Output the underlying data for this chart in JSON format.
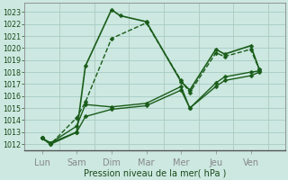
{
  "background_color": "#cce8e0",
  "grid_color": "#a8ccc4",
  "line_color": "#1a5c1a",
  "xlabel": "Pression niveau de la mer( hPa )",
  "x_labels": [
    "Lun",
    "Sam",
    "Dim",
    "Mar",
    "Mer",
    "Jeu",
    "Ven"
  ],
  "ylim": [
    1011.5,
    1023.8
  ],
  "yticks": [
    1012,
    1013,
    1014,
    1015,
    1016,
    1017,
    1018,
    1019,
    1020,
    1021,
    1022,
    1023
  ],
  "series": [
    {
      "x": [
        0.5,
        0.75,
        1.5,
        1.75,
        2.5,
        2.75,
        3.5,
        4.5,
        4.75,
        5.5,
        5.75,
        6.5,
        6.75
      ],
      "y": [
        1012.5,
        1012.0,
        1013.0,
        1018.5,
        1023.2,
        1022.7,
        1022.2,
        1017.2,
        1016.5,
        1019.9,
        1019.5,
        1020.2,
        1018.2
      ],
      "style": "-",
      "marker": "D",
      "ms": 2.5,
      "lw": 1.2
    },
    {
      "x": [
        0.5,
        0.75,
        1.5,
        1.75,
        2.5,
        3.5,
        4.5,
        4.75,
        5.5,
        5.75,
        6.5,
        6.75
      ],
      "y": [
        1012.5,
        1012.0,
        1014.2,
        1015.5,
        1020.8,
        1022.1,
        1017.3,
        1016.3,
        1019.6,
        1019.3,
        1019.9,
        1018.2
      ],
      "style": "--",
      "marker": "D",
      "ms": 2.5,
      "lw": 1.0
    },
    {
      "x": [
        0.5,
        0.75,
        1.5,
        1.75,
        2.5,
        3.5,
        4.5,
        4.75,
        5.5,
        5.75,
        6.5,
        6.75
      ],
      "y": [
        1012.5,
        1012.1,
        1013.5,
        1015.3,
        1015.1,
        1015.4,
        1016.8,
        1015.0,
        1017.1,
        1017.6,
        1018.0,
        1018.1
      ],
      "style": "-",
      "marker": "D",
      "ms": 2.5,
      "lw": 1.0
    },
    {
      "x": [
        0.5,
        0.75,
        1.5,
        1.75,
        2.5,
        3.5,
        4.5,
        4.75,
        5.5,
        5.75,
        6.5,
        6.75
      ],
      "y": [
        1012.5,
        1012.1,
        1013.0,
        1014.3,
        1014.9,
        1015.2,
        1016.5,
        1015.0,
        1016.8,
        1017.3,
        1017.7,
        1018.0
      ],
      "style": "-",
      "marker": "D",
      "ms": 2.5,
      "lw": 1.0
    }
  ],
  "vline_x": [
    1.0,
    2.0,
    3.0,
    4.0,
    5.0,
    6.0,
    7.0
  ],
  "vline_color": "#b0c8be",
  "tick_fontsize": 5.8,
  "label_fontsize": 7.0
}
